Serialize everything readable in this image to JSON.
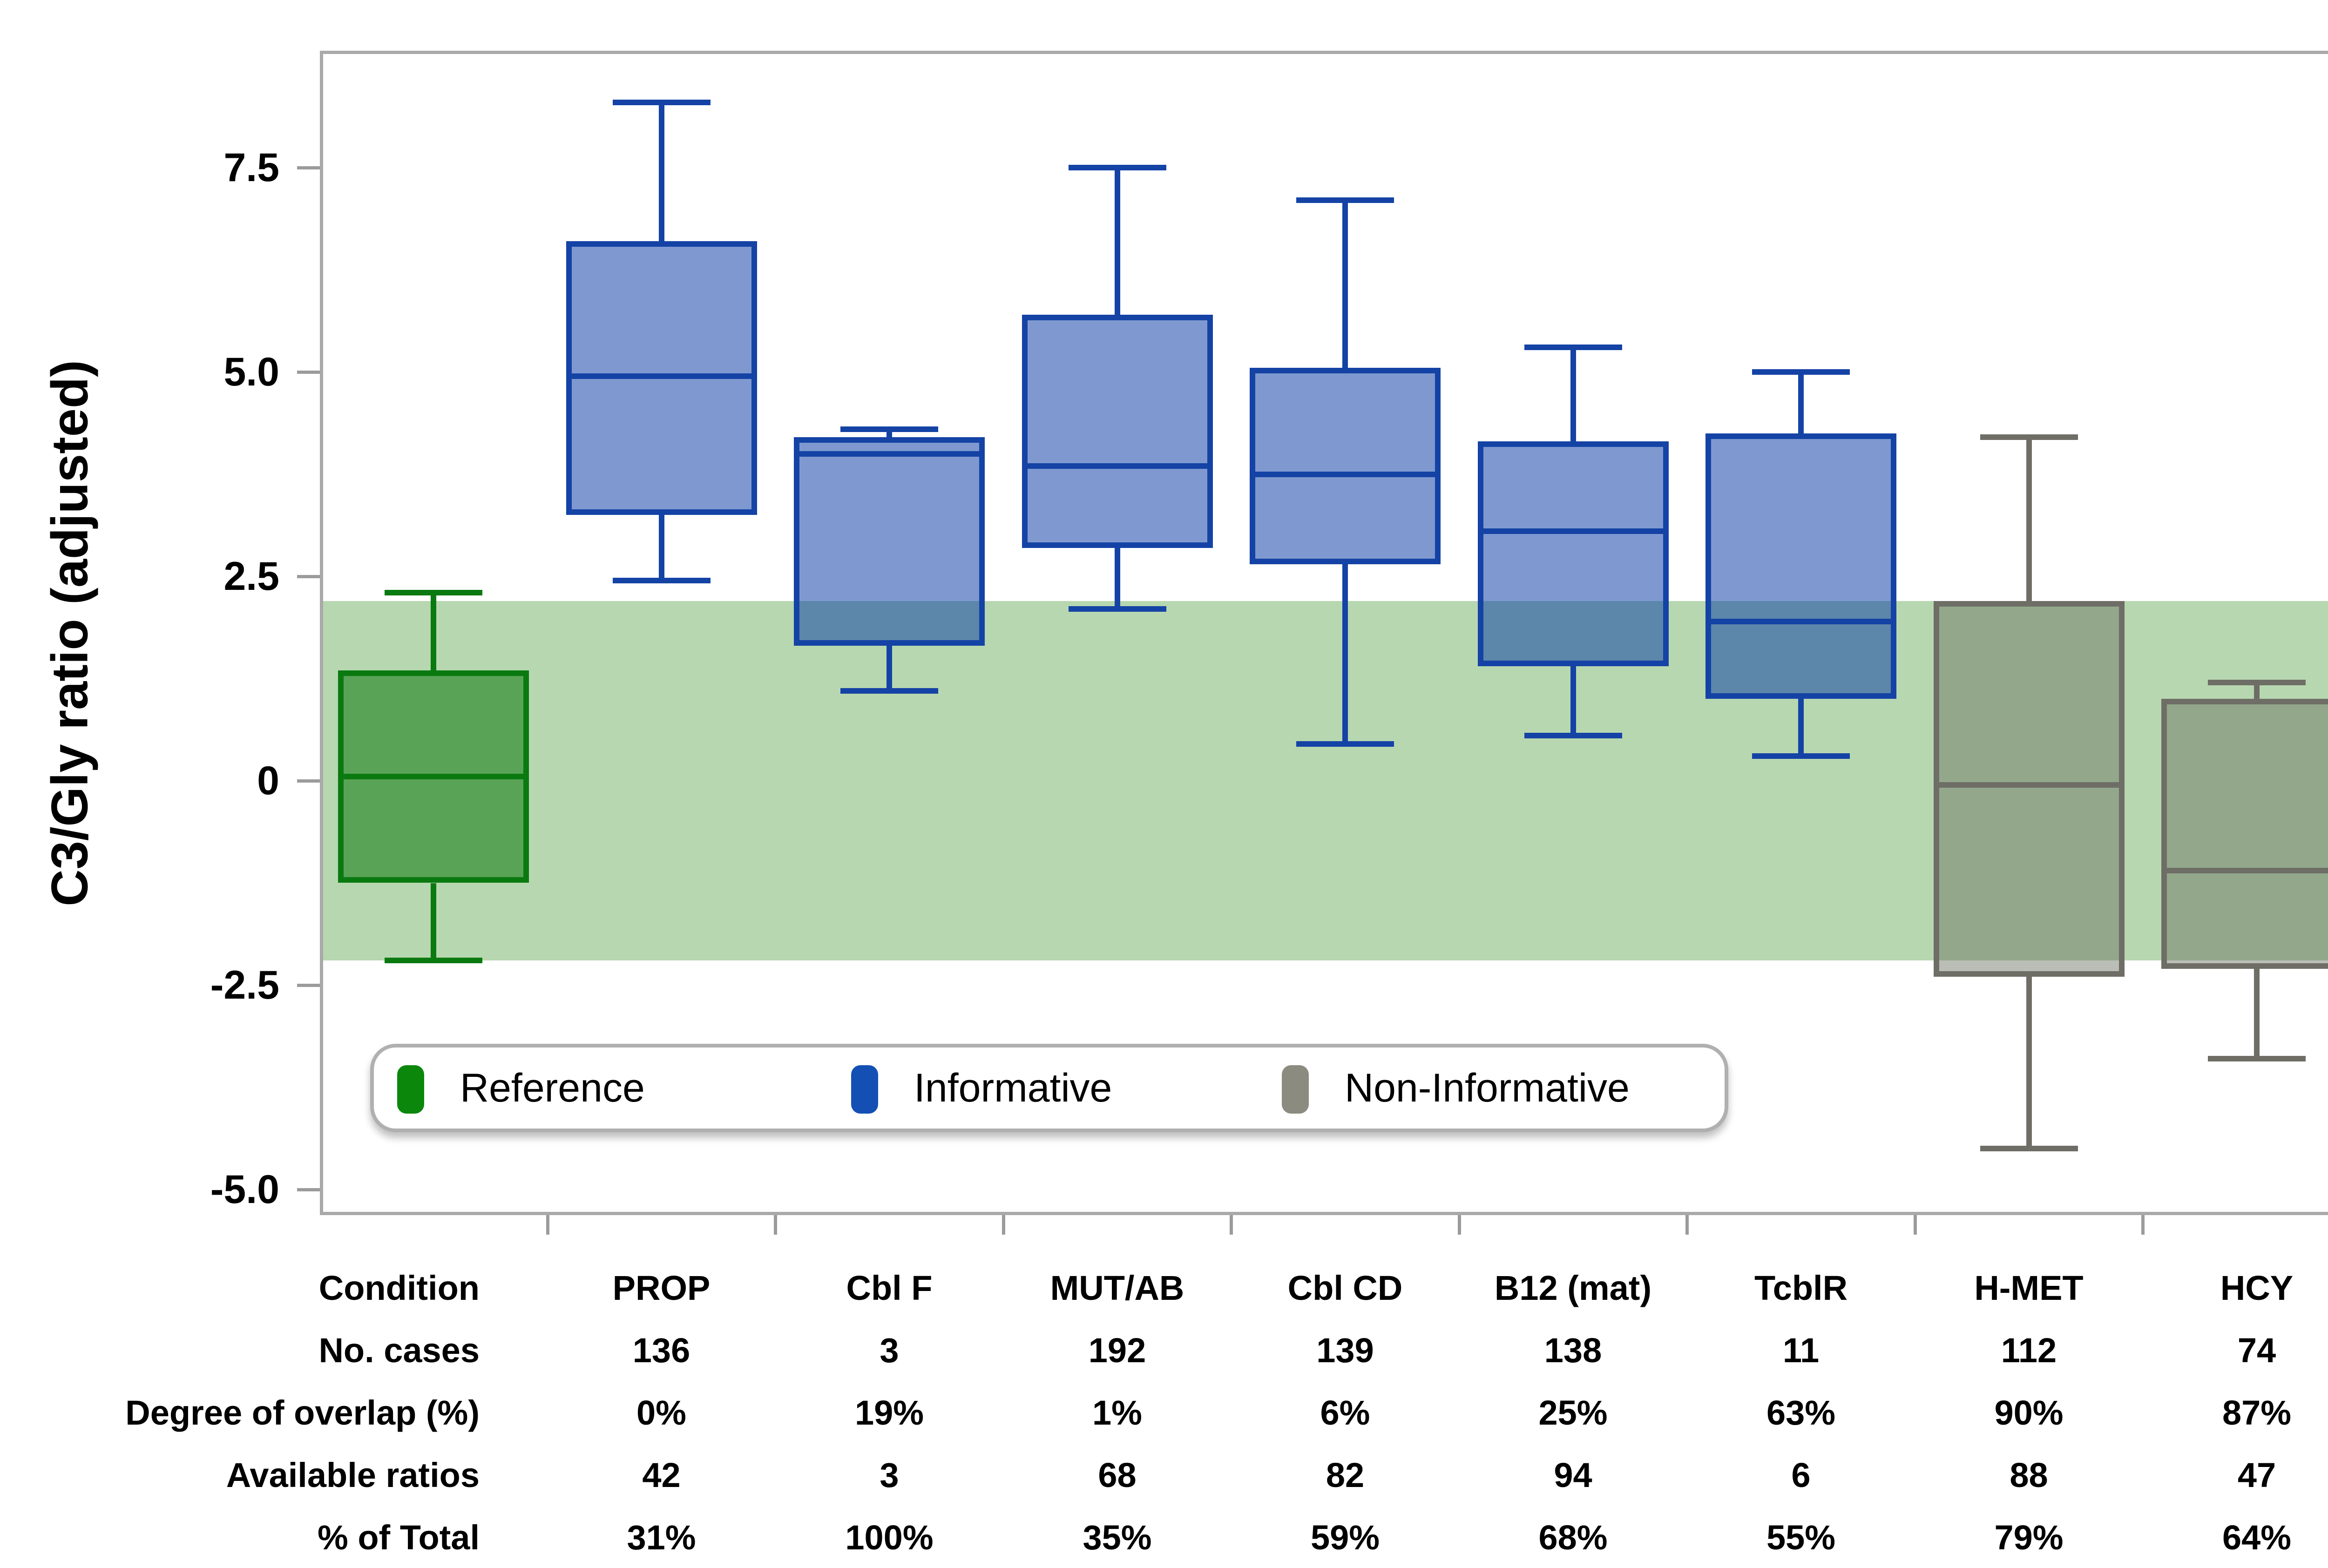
{
  "chart_data": {
    "type": "box",
    "ylabel": "C3/Gly ratio (adjusted)",
    "ylim": [
      -5.3,
      8.9
    ],
    "grid": false,
    "legend_position": "bottom-left-inside",
    "yticks": [
      {
        "label": "7.5",
        "value": 7.5
      },
      {
        "label": "5.0",
        "value": 5.0
      },
      {
        "label": "2.5",
        "value": 2.5
      },
      {
        "label": "0",
        "value": 0
      },
      {
        "label": "-2.5",
        "value": -2.5
      },
      {
        "label": "-5.0",
        "value": -5.0
      }
    ],
    "reference_band": {
      "low": -2.2,
      "high": 2.2,
      "color": "#b7d7b0"
    },
    "groups": [
      {
        "name": "Reference",
        "fill": "rgba(30,130,30,0.62)",
        "line": "#0a7a10"
      },
      {
        "name": "Informative",
        "fill": "rgba(10,60,165,0.52)",
        "line": "#1443a5"
      },
      {
        "name": "Non-Informative",
        "fill": "rgba(105,110,95,0.45)",
        "line": "#6e6e66"
      }
    ],
    "series": [
      {
        "label": "Reference",
        "group": "Reference",
        "whisker_low": -2.2,
        "q1": -1.25,
        "median": 0.05,
        "q3": 1.35,
        "whisker_high": 2.3
      },
      {
        "label": "PROP",
        "group": "Informative",
        "whisker_low": 2.45,
        "q1": 3.25,
        "median": 4.95,
        "q3": 6.6,
        "whisker_high": 8.3
      },
      {
        "label": "Cbl F",
        "group": "Informative",
        "whisker_low": 1.1,
        "q1": 1.65,
        "median": 4.0,
        "q3": 4.2,
        "whisker_high": 4.3
      },
      {
        "label": "MUT/AB",
        "group": "Informative",
        "whisker_low": 2.1,
        "q1": 2.85,
        "median": 3.85,
        "q3": 5.7,
        "whisker_high": 7.5
      },
      {
        "label": "Cbl CD",
        "group": "Informative",
        "whisker_low": 0.45,
        "q1": 2.65,
        "median": 3.75,
        "q3": 5.05,
        "whisker_high": 7.1
      },
      {
        "label": "B12 (mat)",
        "group": "Informative",
        "whisker_low": 0.55,
        "q1": 1.4,
        "median": 3.05,
        "q3": 4.15,
        "whisker_high": 5.3
      },
      {
        "label": "TcblR",
        "group": "Informative",
        "whisker_low": 0.3,
        "q1": 1.0,
        "median": 1.95,
        "q3": 4.25,
        "whisker_high": 5.0
      },
      {
        "label": "H-MET",
        "group": "Non-Informative",
        "whisker_low": -4.5,
        "q1": -2.4,
        "median": -0.05,
        "q3": 2.2,
        "whisker_high": 4.2
      },
      {
        "label": "HCY",
        "group": "Non-Informative",
        "whisker_low": -3.4,
        "q1": -2.3,
        "median": -1.1,
        "q3": 1.0,
        "whisker_high": 1.2
      }
    ]
  },
  "legend": {
    "items": [
      {
        "label": "Reference",
        "color": "#0b870b"
      },
      {
        "label": "Informative",
        "color": "#1450b4"
      },
      {
        "label": "Non-Informative",
        "color": "#8b8b80"
      }
    ]
  },
  "table": {
    "row_labels": [
      "Condition",
      "No. cases",
      "Degree of overlap (%)",
      "Available ratios",
      "% of Total"
    ],
    "columns": [
      {
        "condition": "PROP",
        "no_cases": "136",
        "degree_of_overlap": "0%",
        "available_ratios": "42",
        "pct_of_total": "31%"
      },
      {
        "condition": "Cbl F",
        "no_cases": "3",
        "degree_of_overlap": "19%",
        "available_ratios": "3",
        "pct_of_total": "100%"
      },
      {
        "condition": "MUT/AB",
        "no_cases": "192",
        "degree_of_overlap": "1%",
        "available_ratios": "68",
        "pct_of_total": "35%"
      },
      {
        "condition": "Cbl CD",
        "no_cases": "139",
        "degree_of_overlap": "6%",
        "available_ratios": "82",
        "pct_of_total": "59%"
      },
      {
        "condition": "B12 (mat)",
        "no_cases": "138",
        "degree_of_overlap": "25%",
        "available_ratios": "94",
        "pct_of_total": "68%"
      },
      {
        "condition": "TcblR",
        "no_cases": "11",
        "degree_of_overlap": "63%",
        "available_ratios": "6",
        "pct_of_total": "55%"
      },
      {
        "condition": "H-MET",
        "no_cases": "112",
        "degree_of_overlap": "90%",
        "available_ratios": "88",
        "pct_of_total": "79%"
      },
      {
        "condition": "HCY",
        "no_cases": "74",
        "degree_of_overlap": "87%",
        "available_ratios": "47",
        "pct_of_total": "64%"
      }
    ]
  }
}
